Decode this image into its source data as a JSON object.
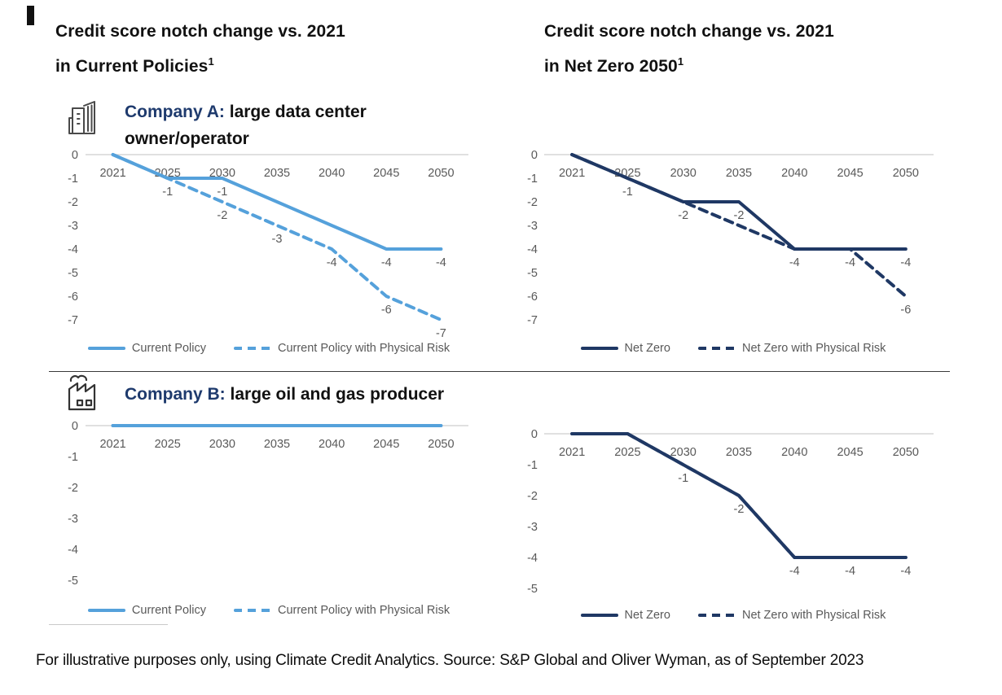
{
  "page": {
    "footer": "For illustrative purposes only, using Climate Credit Analytics. Source: S&P Global and Oliver Wyman, as of September 2023"
  },
  "headers": {
    "left": {
      "line1": "Credit score notch change vs. 2021",
      "line2": "in Current Policies",
      "superscript": "1"
    },
    "right": {
      "line1": "Credit score notch change vs. 2021",
      "line2": "in Net Zero 2050",
      "superscript": "1"
    }
  },
  "companies": {
    "a": {
      "label": "Company A:",
      "description": " large data center owner/operator",
      "icon": "office-buildings-icon"
    },
    "b": {
      "label": "Company B:",
      "description": " large oil and gas producer",
      "icon": "factory-emissions-icon"
    }
  },
  "colors": {
    "current_policy": "#55A1DB",
    "net_zero": "#1F3864",
    "heading_accent": "#1E3A6D",
    "axis_text": "#595959",
    "zero_line": "#D6D6D6"
  },
  "chart_data": [
    {
      "type": "line",
      "company": "Company A: large data center owner/operator",
      "scenario": "Current Policies",
      "categories": [
        "2021",
        "2025",
        "2030",
        "2035",
        "2040",
        "2045",
        "2050"
      ],
      "yticks": [
        0,
        -1,
        -2,
        -3,
        -4,
        -5,
        -6,
        -7
      ],
      "ylim": [
        0,
        -7
      ],
      "grid": "zero-line-only",
      "legend_position": "bottom",
      "color": "#55A1DB",
      "series": [
        {
          "name": "Current Policy",
          "dashed": false,
          "values": [
            0,
            -1,
            -1,
            -2,
            -3,
            -4,
            -4
          ],
          "labels": [
            null,
            "-1",
            "-1",
            null,
            null,
            "-4",
            "-4"
          ]
        },
        {
          "name": "Current Policy with Physical Risk",
          "dashed": true,
          "values": [
            0,
            -1,
            -2,
            -3,
            -4,
            -6,
            -7
          ],
          "labels": [
            null,
            null,
            "-2",
            "-3",
            "-4",
            "-6",
            "-7"
          ]
        }
      ]
    },
    {
      "type": "line",
      "company": "Company A: large data center owner/operator",
      "scenario": "Net Zero 2050",
      "categories": [
        "2021",
        "2025",
        "2030",
        "2035",
        "2040",
        "2045",
        "2050"
      ],
      "yticks": [
        0,
        -1,
        -2,
        -3,
        -4,
        -5,
        -6,
        -7
      ],
      "ylim": [
        0,
        -7
      ],
      "grid": "zero-line-only",
      "legend_position": "bottom",
      "color": "#1F3864",
      "series": [
        {
          "name": "Net Zero",
          "dashed": false,
          "values": [
            0,
            -1,
            -2,
            -2,
            -4,
            -4,
            -4
          ],
          "labels": [
            null,
            "-1",
            "-2",
            "-2",
            "-4",
            "-4",
            "-4"
          ]
        },
        {
          "name": "Net Zero with Physical Risk",
          "dashed": true,
          "values": [
            0,
            -1,
            -2,
            -3,
            -4,
            -4,
            -6
          ],
          "labels": [
            null,
            null,
            null,
            null,
            null,
            null,
            "-6"
          ]
        }
      ]
    },
    {
      "type": "line",
      "company": "Company B: large oil and gas producer",
      "scenario": "Current Policies",
      "categories": [
        "2021",
        "2025",
        "2030",
        "2035",
        "2040",
        "2045",
        "2050"
      ],
      "yticks": [
        0,
        -1,
        -2,
        -3,
        -4,
        -5
      ],
      "ylim": [
        0,
        -5
      ],
      "grid": "zero-line-only",
      "legend_position": "bottom",
      "color": "#55A1DB",
      "series": [
        {
          "name": "Current Policy",
          "dashed": false,
          "values": [
            0,
            0,
            0,
            0,
            0,
            0,
            0
          ],
          "labels": [
            null,
            null,
            null,
            null,
            null,
            null,
            null
          ]
        },
        {
          "name": "Current Policy with Physical Risk",
          "dashed": true,
          "values": [
            0,
            0,
            0,
            0,
            0,
            0,
            0
          ],
          "labels": [
            null,
            null,
            null,
            null,
            null,
            null,
            null
          ]
        }
      ]
    },
    {
      "type": "line",
      "company": "Company B: large oil and gas producer",
      "scenario": "Net Zero 2050",
      "categories": [
        "2021",
        "2025",
        "2030",
        "2035",
        "2040",
        "2045",
        "2050"
      ],
      "yticks": [
        0,
        -1,
        -2,
        -3,
        -4,
        -5
      ],
      "ylim": [
        0,
        -5
      ],
      "grid": "zero-line-only",
      "legend_position": "bottom",
      "color": "#1F3864",
      "series": [
        {
          "name": "Net Zero",
          "dashed": false,
          "values": [
            0,
            0,
            -1,
            -2,
            -4,
            -4,
            -4
          ],
          "labels": [
            null,
            null,
            "-1",
            "-2",
            "-4",
            "-4",
            "-4"
          ]
        },
        {
          "name": "Net Zero with Physical Risk",
          "dashed": true,
          "values": [
            0,
            0,
            -1,
            -2,
            -4,
            -4,
            -4
          ],
          "labels": [
            null,
            null,
            null,
            null,
            null,
            null,
            null
          ]
        }
      ]
    }
  ]
}
